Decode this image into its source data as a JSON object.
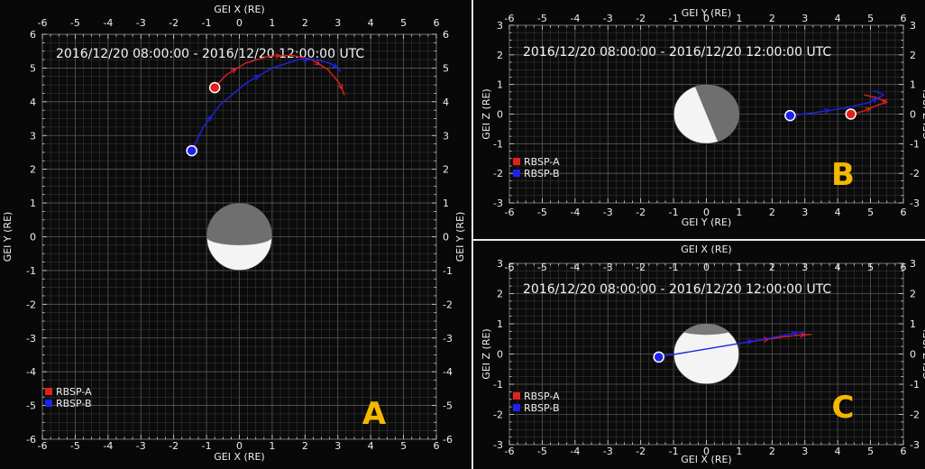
{
  "colors": {
    "rbsp_a": "#e3201c",
    "rbsp_b": "#1e22f0",
    "label": "#f5b800",
    "grid": "#3e3e3e"
  },
  "chart_data": [
    {
      "id": "A",
      "type": "line",
      "title": "2016/12/20 08:00:00 - 2016/12/20 12:00:00 UTC",
      "panel_label": "A",
      "xlabel": "GEI X (RE)",
      "ylabel": "GEI Y (RE)",
      "xlim": [
        -6,
        6
      ],
      "ylim": [
        -6,
        6
      ],
      "xticks": [
        "-6",
        "-5",
        "-4",
        "-3",
        "-2",
        "-1",
        "0",
        "1",
        "2",
        "3",
        "4",
        "5",
        "6"
      ],
      "yticks": [
        "-6",
        "-5",
        "-4",
        "-3",
        "-2",
        "-1",
        "0",
        "1",
        "2",
        "3",
        "4",
        "5",
        "6"
      ],
      "grid": true,
      "legend_position": "bottom-left",
      "earth": {
        "center": [
          0,
          0
        ],
        "radius": 1,
        "shading": "dark-top"
      },
      "series": [
        {
          "name": "RBSP-A",
          "color": "#e3201c",
          "x": [
            -0.75,
            -0.4,
            0.2,
            0.9,
            1.6,
            2.2,
            2.7,
            3.05,
            3.2
          ],
          "y": [
            4.42,
            4.8,
            5.15,
            5.35,
            5.38,
            5.25,
            4.95,
            4.55,
            4.2
          ],
          "marker_at": [
            -0.75,
            4.42
          ]
        },
        {
          "name": "RBSP-B",
          "color": "#1e22f0",
          "x": [
            -1.45,
            -1.1,
            -0.6,
            0.2,
            1.0,
            1.8,
            2.4,
            2.85,
            3.1
          ],
          "y": [
            2.55,
            3.25,
            3.9,
            4.55,
            5.0,
            5.25,
            5.25,
            5.1,
            4.9
          ],
          "marker_at": [
            -1.45,
            2.55
          ]
        }
      ]
    },
    {
      "id": "B",
      "type": "line",
      "title": "2016/12/20 08:00:00 - 2016/12/20 12:00:00 UTC",
      "panel_label": "B",
      "xlabel": "GEI Y (RE)",
      "ylabel": "GEI Z (RE)",
      "xlim": [
        -6,
        6
      ],
      "ylim": [
        -3,
        3
      ],
      "xticks": [
        "-6",
        "-5",
        "-4",
        "-3",
        "-2",
        "-1",
        "0",
        "1",
        "2",
        "3",
        "4",
        "5",
        "6"
      ],
      "yticks": [
        "-3",
        "-2",
        "-1",
        "0",
        "1",
        "2",
        "3"
      ],
      "grid": true,
      "legend_position": "bottom-left",
      "earth": {
        "center": [
          0,
          0
        ],
        "radius": 1,
        "shading": "dark-right"
      },
      "series": [
        {
          "name": "RBSP-A",
          "color": "#e3201c",
          "x": [
            4.4,
            4.8,
            5.2,
            5.5,
            5.2,
            4.8
          ],
          "y": [
            0.0,
            0.1,
            0.3,
            0.4,
            0.55,
            0.65
          ],
          "marker_at": [
            4.4,
            0.0
          ]
        },
        {
          "name": "RBSP-B",
          "color": "#1e22f0",
          "x": [
            2.55,
            3.3,
            4.2,
            5.0,
            5.4,
            5.1
          ],
          "y": [
            -0.05,
            0.05,
            0.2,
            0.4,
            0.65,
            0.8
          ],
          "marker_at": [
            2.55,
            -0.05
          ]
        }
      ]
    },
    {
      "id": "C",
      "type": "line",
      "title": "2016/12/20 08:00:00 - 2016/12/20 12:00:00 UTC",
      "panel_label": "C",
      "xlabel": "GEI X (RE)",
      "ylabel": "GEI Z (RE)",
      "xlim": [
        -6,
        6
      ],
      "ylim": [
        -3,
        3
      ],
      "xticks": [
        "-6",
        "-5",
        "-4",
        "-3",
        "-2",
        "-1",
        "0",
        "1",
        "2",
        "3",
        "4",
        "5",
        "6"
      ],
      "yticks": [
        "-3",
        "-2",
        "-1",
        "0",
        "1",
        "2",
        "3"
      ],
      "grid": true,
      "legend_position": "bottom-left",
      "earth": {
        "center": [
          0,
          0
        ],
        "radius": 1,
        "shading": "thin-top"
      },
      "series": [
        {
          "name": "RBSP-A",
          "color": "#e3201c",
          "x": [
            1.0,
            1.6,
            2.2,
            2.8,
            3.2
          ],
          "y": [
            0.35,
            0.45,
            0.55,
            0.62,
            0.65
          ],
          "marker_at": null
        },
        {
          "name": "RBSP-B",
          "color": "#1e22f0",
          "x": [
            -1.45,
            1.0,
            1.8,
            2.5,
            3.0
          ],
          "y": [
            -0.1,
            0.35,
            0.5,
            0.65,
            0.72
          ],
          "marker_at": [
            -1.45,
            -0.1
          ]
        }
      ]
    }
  ]
}
